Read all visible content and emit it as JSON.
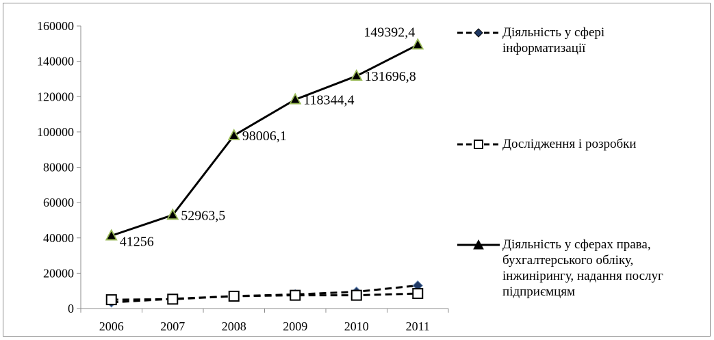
{
  "chart_data": {
    "type": "line",
    "categories": [
      "2006",
      "2007",
      "2008",
      "2009",
      "2010",
      "2011"
    ],
    "ylim": [
      0,
      160000
    ],
    "yticks": [
      "0",
      "20000",
      "40000",
      "60000",
      "80000",
      "100000",
      "120000",
      "140000",
      "160000"
    ],
    "grid": false,
    "legend_position": "right",
    "series": [
      {
        "name": "Діяльність у сфері\nінформатизації",
        "values": [
          3500,
          5500,
          7000,
          8000,
          9500,
          13000
        ],
        "line_style": "dashed",
        "marker": "diamond",
        "color": "#000000",
        "marker_color": "#1f3864"
      },
      {
        "name": "Дослідження і розробки",
        "values": [
          5000,
          5300,
          7000,
          7500,
          7500,
          8500
        ],
        "line_style": "dashed",
        "marker": "square-open",
        "color": "#000000",
        "marker_color": "#000000"
      },
      {
        "name": "Діяльність у сферах права,\nбухгалтерського обліку,\nінжинірингу, надання послуг\nпідприємцям",
        "values": [
          41256,
          52963.5,
          98006.1,
          118344.4,
          131696.8,
          149392.4
        ],
        "line_style": "solid",
        "marker": "triangle",
        "color": "#000000",
        "marker_color": "#000000",
        "marker_fill": "#9bbb59",
        "data_labels": [
          "41256",
          "52963,5",
          "98006,1",
          "118344,4",
          "131696,8",
          "149392,4"
        ]
      }
    ]
  }
}
